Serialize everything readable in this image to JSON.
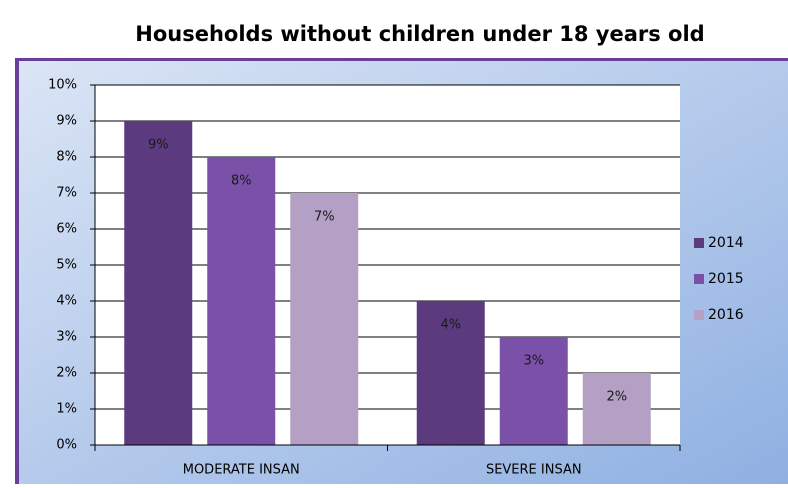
{
  "chart_data": {
    "type": "bar",
    "title": "Households without children under 18 years old",
    "categories": [
      "MODERATE INSAN",
      "SEVERE INSAN"
    ],
    "series": [
      {
        "name": "2014",
        "color": "#5b3b7d",
        "values": [
          9,
          4
        ],
        "value_labels": [
          "9%",
          "4%"
        ]
      },
      {
        "name": "2015",
        "color": "#7a50a8",
        "values": [
          8,
          3
        ],
        "value_labels": [
          "8%",
          "3%"
        ]
      },
      {
        "name": "2016",
        "color": "#b3a0c4",
        "values": [
          7,
          2
        ],
        "value_labels": [
          "7%",
          "2%"
        ]
      }
    ],
    "ylim": [
      0,
      10
    ],
    "yticks": [
      {
        "value": 0,
        "label": "0%"
      },
      {
        "value": 1,
        "label": "1%"
      },
      {
        "value": 2,
        "label": "2%"
      },
      {
        "value": 3,
        "label": "3%"
      },
      {
        "value": 4,
        "label": "4%"
      },
      {
        "value": 5,
        "label": "5%"
      },
      {
        "value": 6,
        "label": "6%"
      },
      {
        "value": 7,
        "label": "7%"
      },
      {
        "value": 8,
        "label": "8%"
      },
      {
        "value": 9,
        "label": "9%"
      },
      {
        "value": 10,
        "label": "10%"
      }
    ],
    "grid": true,
    "legend": "right"
  }
}
